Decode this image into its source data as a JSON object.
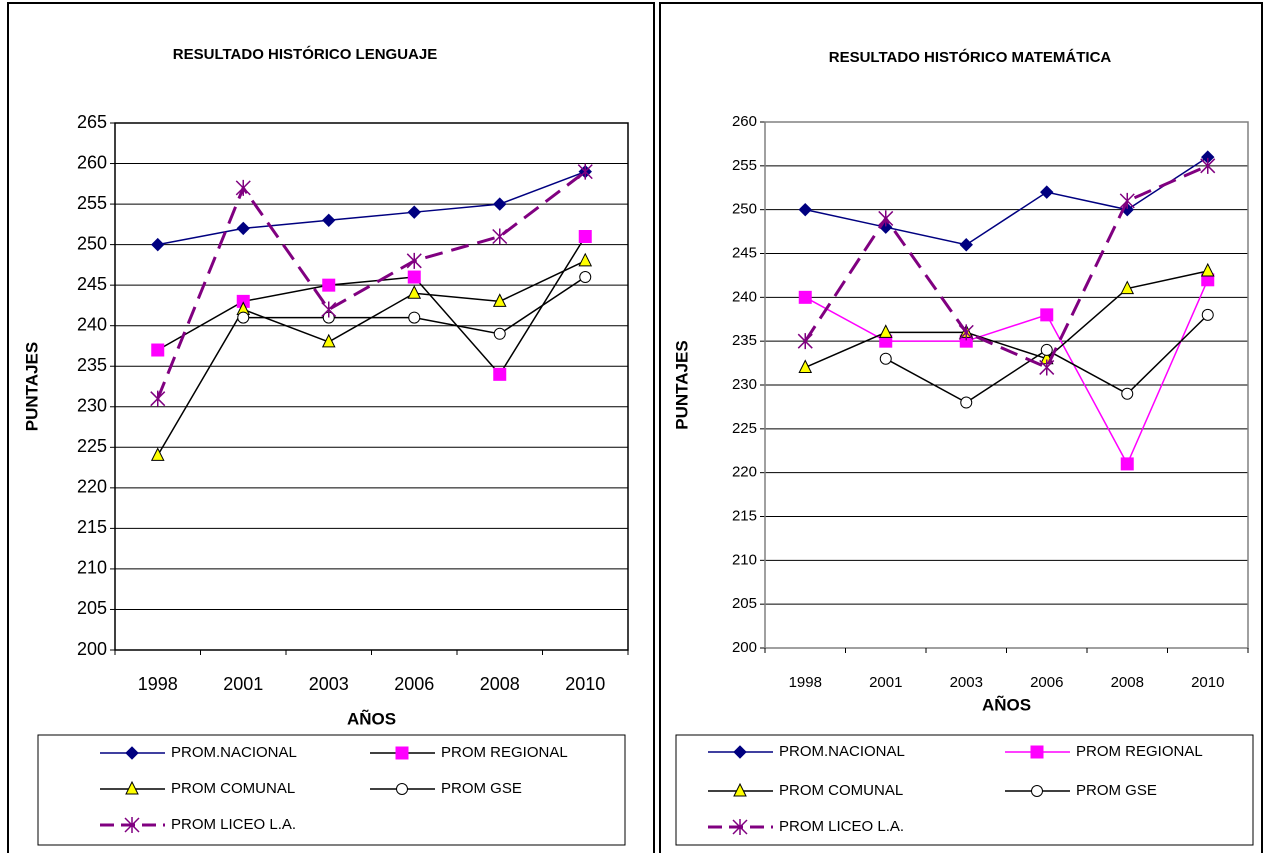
{
  "chart_data": [
    {
      "type": "line",
      "title": "RESULTADO HISTÓRICO LENGUAJE",
      "y_label": "PUNTAJES",
      "x_label": "AÑOS",
      "categories": [
        "1998",
        "2001",
        "2003",
        "2006",
        "2008",
        "2010"
      ],
      "ylim": [
        200,
        265
      ],
      "yticks": [
        200,
        205,
        210,
        215,
        220,
        225,
        230,
        235,
        240,
        245,
        250,
        255,
        260,
        265
      ],
      "grid": true,
      "series": [
        {
          "name": "PROM.NACIONAL",
          "color": "#000080",
          "marker": "diamond",
          "marker_color": "#000080",
          "dashed": false,
          "values": [
            250,
            252,
            253,
            254,
            255,
            259
          ]
        },
        {
          "name": "PROM REGIONAL",
          "color": "#000000",
          "marker": "square",
          "marker_color": "#ff00ff",
          "dashed": false,
          "values": [
            237,
            243,
            245,
            246,
            234,
            251
          ]
        },
        {
          "name": "PROM COMUNAL",
          "color": "#000000",
          "marker": "triangle",
          "marker_color": "#ffff00",
          "dashed": false,
          "values": [
            224,
            242,
            238,
            244,
            243,
            248
          ]
        },
        {
          "name": "PROM GSE",
          "color": "#000000",
          "marker": "circle",
          "marker_color": "#ffffff",
          "dashed": false,
          "values": [
            null,
            241,
            241,
            241,
            239,
            246
          ]
        },
        {
          "name": "PROM LICEO L.A.",
          "color": "#800080",
          "marker": "star",
          "marker_color": "#800080",
          "dashed": true,
          "values": [
            231,
            257,
            242,
            248,
            251,
            259
          ]
        }
      ]
    },
    {
      "type": "line",
      "title": "RESULTADO HISTÓRICO MATEMÁTICA",
      "y_label": "PUNTAJES",
      "x_label": "AÑOS",
      "categories": [
        "1998",
        "2001",
        "2003",
        "2006",
        "2008",
        "2010"
      ],
      "ylim": [
        200,
        260
      ],
      "yticks": [
        200,
        205,
        210,
        215,
        220,
        225,
        230,
        235,
        240,
        245,
        250,
        255,
        260
      ],
      "grid": true,
      "series": [
        {
          "name": "PROM.NACIONAL",
          "color": "#000080",
          "marker": "diamond",
          "marker_color": "#000080",
          "dashed": false,
          "values": [
            250,
            248,
            246,
            252,
            250,
            256
          ]
        },
        {
          "name": "PROM REGIONAL",
          "color": "#ff00ff",
          "marker": "square",
          "marker_color": "#ff00ff",
          "dashed": false,
          "values": [
            240,
            235,
            235,
            238,
            221,
            242
          ]
        },
        {
          "name": "PROM COMUNAL",
          "color": "#000000",
          "marker": "triangle",
          "marker_color": "#ffff00",
          "dashed": false,
          "values": [
            232,
            236,
            236,
            233,
            241,
            243
          ]
        },
        {
          "name": "PROM GSE",
          "color": "#000000",
          "marker": "circle",
          "marker_color": "#ffffff",
          "dashed": false,
          "values": [
            null,
            233,
            228,
            234,
            229,
            238
          ]
        },
        {
          "name": "PROM LICEO L.A.",
          "color": "#800080",
          "marker": "star",
          "marker_color": "#800080",
          "dashed": true,
          "values": [
            235,
            249,
            236,
            232,
            251,
            255
          ]
        }
      ]
    }
  ]
}
